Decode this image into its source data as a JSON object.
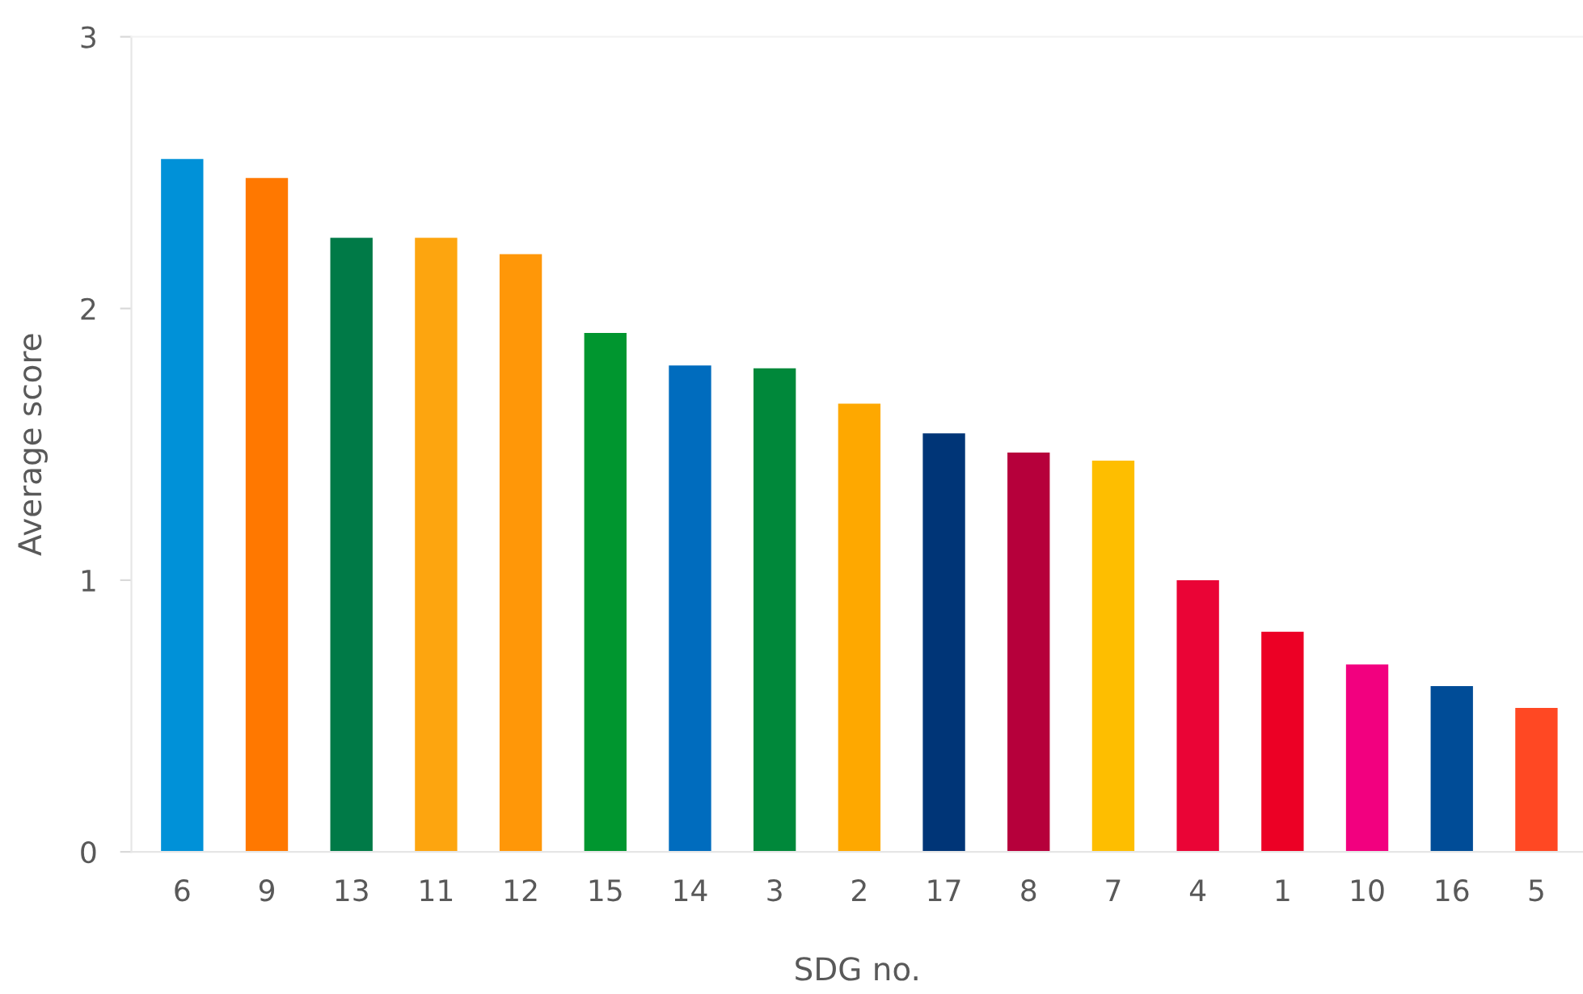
{
  "chart_data": {
    "type": "bar",
    "xlabel": "SDG no.",
    "ylabel": "Average score",
    "categories": [
      "6",
      "9",
      "13",
      "11",
      "12",
      "15",
      "14",
      "3",
      "2",
      "17",
      "8",
      "7",
      "4",
      "1",
      "10",
      "16",
      "5"
    ],
    "values": [
      2.55,
      2.48,
      2.26,
      2.26,
      2.2,
      1.91,
      1.79,
      1.78,
      1.65,
      1.54,
      1.47,
      1.44,
      1.0,
      0.81,
      0.69,
      0.61,
      0.53
    ],
    "colors": [
      "#0091d8",
      "#ff7800",
      "#007a47",
      "#fda50f",
      "#ff9708",
      "#00962f",
      "#006cbe",
      "#00883a",
      "#fea800",
      "#003577",
      "#b6003b",
      "#febe00",
      "#ea0436",
      "#ec0025",
      "#f2007f",
      "#004c97",
      "#ff4823"
    ],
    "ylim": [
      0,
      3
    ],
    "yticks": [
      0,
      1,
      2,
      3
    ],
    "grid": false
  }
}
